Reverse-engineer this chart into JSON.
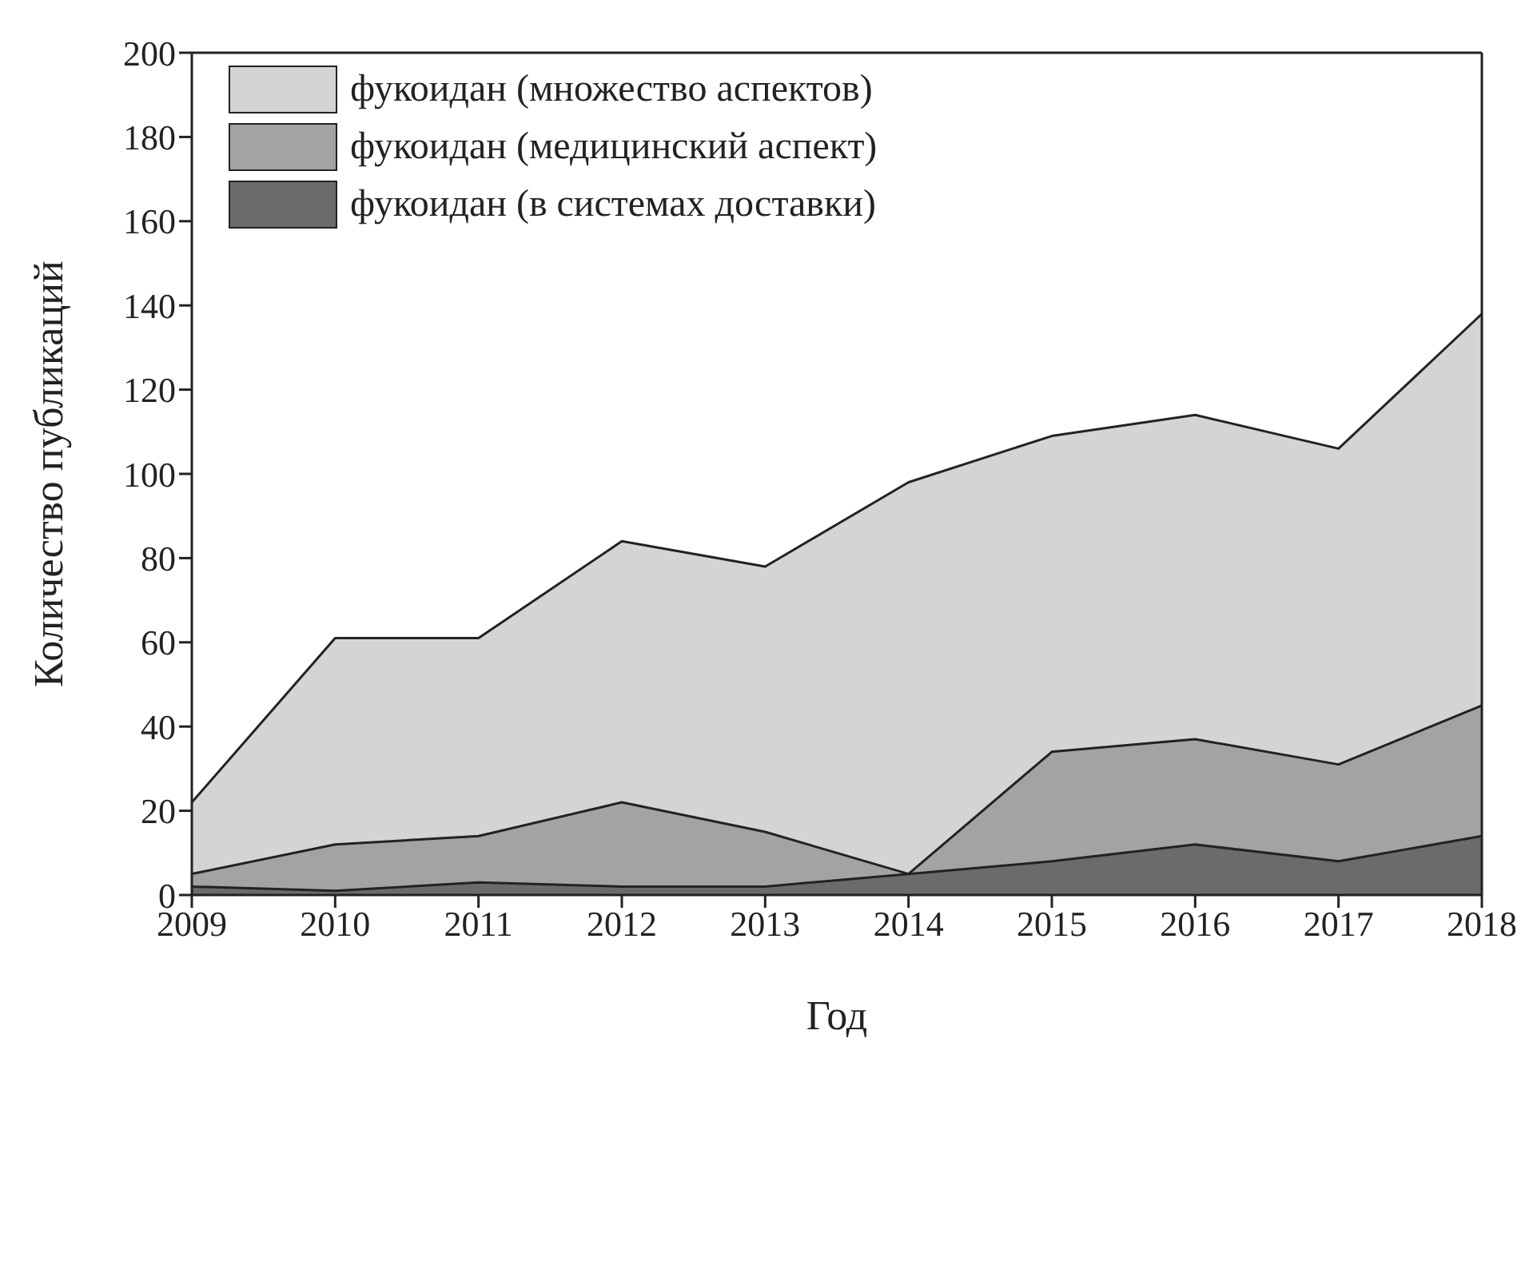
{
  "chart_data": {
    "type": "area",
    "xlabel": "Год",
    "ylabel": "Количество публикаций",
    "x": [
      2009,
      2010,
      2011,
      2012,
      2013,
      2014,
      2015,
      2016,
      2017,
      2018
    ],
    "xlim": [
      2009,
      2018
    ],
    "xticks": [
      2009,
      2010,
      2011,
      2012,
      2013,
      2014,
      2015,
      2016,
      2017,
      2018
    ],
    "ylim": [
      0,
      200
    ],
    "yticks": [
      0,
      20,
      40,
      60,
      80,
      100,
      120,
      140,
      160,
      180,
      200
    ],
    "grid": false,
    "legend": "top left",
    "series": [
      {
        "name": "фукоидан (множество аспектов)",
        "color": "#d4d4d4",
        "values": [
          22,
          61,
          61,
          84,
          78,
          98,
          109,
          114,
          106,
          138
        ]
      },
      {
        "name": "фукоидан (медицинский аспект)",
        "color": "#a3a3a3",
        "values": [
          5,
          12,
          14,
          22,
          15,
          5,
          34,
          37,
          31,
          45
        ]
      },
      {
        "name": "фукоидан (в системах доставки)",
        "color": "#6b6b6b",
        "values": [
          2,
          1,
          3,
          2,
          2,
          5,
          8,
          12,
          8,
          14
        ]
      }
    ]
  }
}
